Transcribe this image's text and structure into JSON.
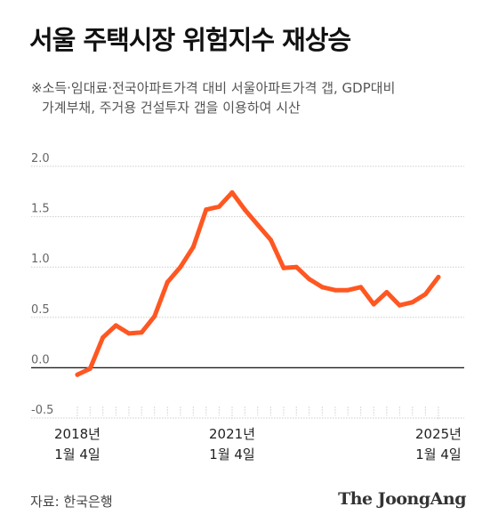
{
  "header": {
    "title": "서울 주택시장 위험지수 재상승",
    "subtitle_line1": "※소득·임대료·전국아파트가격 대비 서울아파트가격 갭, GDP대비",
    "subtitle_line2": "가계부채, 주거용 건설투자 갭을 이용하여 시산"
  },
  "footer": {
    "source": "자료: 한국은행",
    "logo": "The JoongAng"
  },
  "colors": {
    "line": "#FF5722",
    "grid": "#cccccc",
    "zero_line": "#222222",
    "axis_text": "#666666"
  },
  "chart_data": {
    "type": "line",
    "title": "서울 주택시장 위험지수 재상승",
    "xlabel": "",
    "ylabel": "",
    "ylim": [
      -0.5,
      2.0
    ],
    "yticks": [
      -0.5,
      0.0,
      0.5,
      1.0,
      1.5,
      2.0
    ],
    "ytick_labels": [
      "-0.5",
      "0.0",
      "0.5",
      "1.0",
      "1.5",
      "2.0"
    ],
    "grid": true,
    "x_range": [
      "2018-01-01",
      "2025-04-01"
    ],
    "x_ticks": [
      {
        "x": "2018-01-01",
        "line1": "2018년",
        "line2": "1월 4일"
      },
      {
        "x": "2018-04-01",
        "line1": "",
        "line2": ""
      },
      {
        "x": "2018-07-01",
        "line1": "",
        "line2": ""
      },
      {
        "x": "2018-10-01",
        "line1": "",
        "line2": ""
      },
      {
        "x": "2019-01-01",
        "line1": "",
        "line2": ""
      },
      {
        "x": "2019-04-01",
        "line1": "",
        "line2": ""
      },
      {
        "x": "2019-07-01",
        "line1": "",
        "line2": ""
      },
      {
        "x": "2019-10-01",
        "line1": "",
        "line2": ""
      },
      {
        "x": "2020-01-01",
        "line1": "",
        "line2": ""
      },
      {
        "x": "2020-04-01",
        "line1": "",
        "line2": ""
      },
      {
        "x": "2020-07-01",
        "line1": "",
        "line2": ""
      },
      {
        "x": "2020-10-01",
        "line1": "",
        "line2": ""
      },
      {
        "x": "2021-01-01",
        "line1": "2021년",
        "line2": "1월 4일"
      },
      {
        "x": "2021-04-01",
        "line1": "",
        "line2": ""
      },
      {
        "x": "2021-07-01",
        "line1": "",
        "line2": ""
      },
      {
        "x": "2021-10-01",
        "line1": "",
        "line2": ""
      },
      {
        "x": "2022-01-01",
        "line1": "",
        "line2": ""
      },
      {
        "x": "2022-04-01",
        "line1": "",
        "line2": ""
      },
      {
        "x": "2022-07-01",
        "line1": "",
        "line2": ""
      },
      {
        "x": "2022-10-01",
        "line1": "",
        "line2": ""
      },
      {
        "x": "2023-01-01",
        "line1": "",
        "line2": ""
      },
      {
        "x": "2023-04-01",
        "line1": "",
        "line2": ""
      },
      {
        "x": "2023-07-01",
        "line1": "",
        "line2": ""
      },
      {
        "x": "2023-10-01",
        "line1": "",
        "line2": ""
      },
      {
        "x": "2024-01-01",
        "line1": "",
        "line2": ""
      },
      {
        "x": "2024-04-01",
        "line1": "",
        "line2": ""
      },
      {
        "x": "2024-07-01",
        "line1": "",
        "line2": ""
      },
      {
        "x": "2024-10-01",
        "line1": "",
        "line2": ""
      },
      {
        "x": "2025-01-01",
        "line1": "2025년",
        "line2": "1월 4일"
      }
    ],
    "series": [
      {
        "x": [
          "2018-01-01",
          "2018-04-01",
          "2018-07-01",
          "2018-10-01",
          "2019-01-01",
          "2019-04-01",
          "2019-07-01",
          "2019-10-01",
          "2020-01-01",
          "2020-04-01",
          "2020-07-01",
          "2020-10-01",
          "2021-01-01",
          "2021-04-01",
          "2021-07-01",
          "2021-10-01",
          "2022-01-01",
          "2022-04-01",
          "2022-07-01",
          "2022-10-01",
          "2023-01-01",
          "2023-04-01",
          "2023-07-01",
          "2023-10-01",
          "2024-01-01",
          "2024-04-01",
          "2024-07-01",
          "2024-10-01",
          "2025-01-01"
        ],
        "values": [
          -0.07,
          -0.01,
          0.3,
          0.42,
          0.34,
          0.35,
          0.51,
          0.85,
          1.0,
          1.2,
          1.57,
          1.6,
          1.74,
          1.57,
          1.42,
          1.27,
          0.99,
          1.0,
          0.88,
          0.8,
          0.77,
          0.77,
          0.8,
          0.63,
          0.75,
          0.62,
          0.65,
          0.73,
          0.9
        ]
      }
    ]
  }
}
